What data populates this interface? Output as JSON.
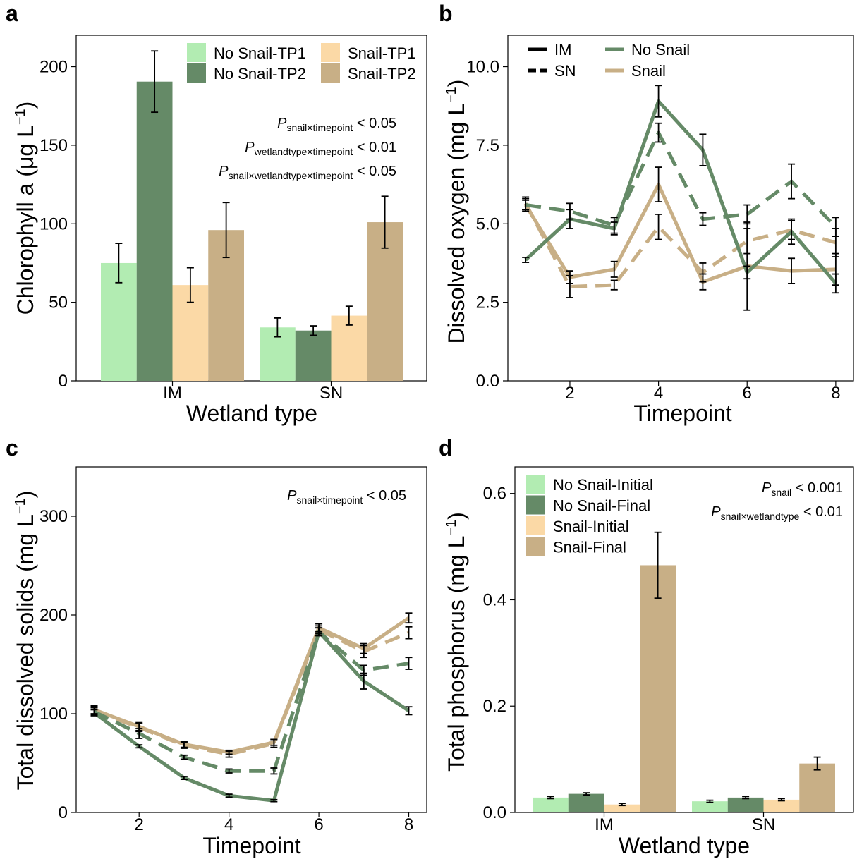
{
  "panel_labels": [
    "a",
    "b",
    "c",
    "d"
  ],
  "colors": {
    "no_snail_tp1": "#b2ecb2",
    "no_snail_tp2": "#658a67",
    "snail_tp1": "#fbd9a6",
    "snail_tp2": "#c8af86",
    "no_snail_line": "#658a67",
    "snail_line": "#c8af86",
    "axis": "#000000"
  },
  "stats": {
    "a": [
      {
        "sym": "P",
        "sub": "snail×timepoint",
        "rest": " < 0.05"
      },
      {
        "sym": "P",
        "sub": "wetlandtype×timepoint",
        "rest": " < 0.01"
      },
      {
        "sym": "P",
        "sub": "snail×wetlandtype×timepoint",
        "rest": " < 0.05"
      }
    ],
    "c": [
      {
        "sym": "P",
        "sub": "snail×timepoint",
        "rest": " < 0.05"
      }
    ],
    "d": [
      {
        "sym": "P",
        "sub": "snail",
        "rest": " < 0.001"
      },
      {
        "sym": "P",
        "sub": "snail×wetlandtype",
        "rest": " < 0.01"
      }
    ]
  },
  "chart_data": [
    {
      "panel": "a",
      "type": "bar",
      "categories": [
        "IM",
        "SN"
      ],
      "xlabel": "Wetland type",
      "ylabel": "Chlorophyll a (μg L−1)",
      "ylim": [
        0,
        220
      ],
      "yticks": [
        0,
        50,
        100,
        150,
        200
      ],
      "legend": "top-right",
      "series": [
        {
          "name": "No Snail-TP1",
          "values": [
            75,
            34
          ],
          "err": [
            12.5,
            6
          ]
        },
        {
          "name": "No Snail-TP2",
          "values": [
            190.5,
            32
          ],
          "err": [
            19.5,
            3
          ]
        },
        {
          "name": "Snail-TP1",
          "values": [
            61,
            41.5
          ],
          "err": [
            11,
            6
          ]
        },
        {
          "name": "Snail-TP2",
          "values": [
            96,
            101
          ],
          "err": [
            17.5,
            16.5
          ]
        }
      ]
    },
    {
      "panel": "b",
      "type": "line",
      "x": [
        1,
        2,
        3,
        4,
        5,
        6,
        7,
        8
      ],
      "xlabel": "Timepoint",
      "ylabel": "Dissolved oxygen (mg L−1)",
      "xlim": [
        0.6,
        8.4
      ],
      "ylim": [
        0,
        11
      ],
      "xticks": [
        2,
        4,
        6,
        8
      ],
      "yticks": [
        0.0,
        2.5,
        5.0,
        7.5,
        10.0
      ],
      "ytick_labels": [
        "0.0",
        "2.5",
        "5.0",
        "7.5",
        "10.0"
      ],
      "legend": "top-left",
      "legend_linetype": [
        "IM",
        "SN"
      ],
      "legend_treatment": [
        "No Snail",
        "Snail"
      ],
      "series": [
        {
          "snail": "No Snail",
          "wetland": "IM",
          "values": [
            3.85,
            5.15,
            4.85,
            8.9,
            7.35,
            3.45,
            4.75,
            3.1
          ],
          "err": [
            0.08,
            0.3,
            0.2,
            0.5,
            0.5,
            0.2,
            0.4,
            0.3
          ]
        },
        {
          "snail": "No Snail",
          "wetland": "SN",
          "values": [
            5.6,
            5.4,
            4.95,
            7.9,
            5.15,
            5.3,
            6.35,
            4.9
          ],
          "err": [
            0.15,
            0.25,
            0.25,
            0.3,
            0.2,
            0.3,
            0.55,
            0.3
          ]
        },
        {
          "snail": "Snail",
          "wetland": "IM",
          "values": [
            5.6,
            3.3,
            3.55,
            6.25,
            3.15,
            3.65,
            3.5,
            3.55
          ],
          "err": [
            0.2,
            0.2,
            0.25,
            0.55,
            0.25,
            1.4,
            0.4,
            0.5
          ]
        },
        {
          "snail": "Snail",
          "wetland": "SN",
          "values": [
            5.65,
            3.0,
            3.05,
            4.9,
            3.45,
            4.45,
            4.8,
            4.4
          ],
          "err": [
            0.2,
            0.35,
            0.15,
            0.4,
            0.3,
            0.4,
            0.3,
            0.45
          ]
        }
      ]
    },
    {
      "panel": "c",
      "type": "line",
      "x": [
        1,
        2,
        3,
        4,
        5,
        6,
        7,
        8
      ],
      "xlabel": "Timepoint",
      "ylabel": "Total dissolved solids (mg L−1)",
      "xlim": [
        0.6,
        8.4
      ],
      "ylim": [
        0,
        350
      ],
      "xticks": [
        2,
        4,
        6,
        8
      ],
      "yticks": [
        0,
        100,
        200,
        300
      ],
      "series": [
        {
          "snail": "No Snail",
          "wetland": "IM",
          "values": [
            101,
            67,
            35,
            17,
            12,
            183,
            133,
            103
          ],
          "err": [
            3,
            1.5,
            1.5,
            1.5,
            1,
            4,
            8,
            4
          ]
        },
        {
          "snail": "No Snail",
          "wetland": "SN",
          "values": [
            102,
            80,
            56,
            42,
            42,
            183,
            144,
            151
          ],
          "err": [
            4,
            5,
            2,
            2,
            3,
            4,
            5,
            6
          ]
        },
        {
          "snail": "Snail",
          "wetland": "IM",
          "values": [
            104,
            87,
            69,
            61,
            71,
            187,
            166,
            197
          ],
          "err": [
            4,
            4,
            3,
            2,
            3,
            4,
            5,
            5
          ]
        },
        {
          "snail": "Snail",
          "wetland": "SN",
          "values": [
            103,
            86,
            68,
            59,
            70,
            185,
            163,
            182
          ],
          "err": [
            4,
            4,
            3,
            3,
            4,
            4,
            6,
            6
          ]
        }
      ]
    },
    {
      "panel": "d",
      "type": "bar",
      "categories": [
        "IM",
        "SN"
      ],
      "xlabel": "Wetland type",
      "ylabel": "Total phosphorus (mg L−1)",
      "ylim": [
        0,
        0.65
      ],
      "yticks": [
        0.0,
        0.2,
        0.4,
        0.6
      ],
      "ytick_labels": [
        "0.0",
        "0.2",
        "0.4",
        "0.6"
      ],
      "legend": "top-left",
      "series": [
        {
          "name": "No Snail-Initial",
          "values": [
            0.028,
            0.021
          ],
          "err": [
            0.002,
            0.002
          ]
        },
        {
          "name": "No Snail-Final",
          "values": [
            0.035,
            0.028
          ],
          "err": [
            0.002,
            0.002
          ]
        },
        {
          "name": "Snail-Initial",
          "values": [
            0.015,
            0.024
          ],
          "err": [
            0.002,
            0.002
          ]
        },
        {
          "name": "Snail-Final",
          "values": [
            0.465,
            0.092
          ],
          "err": [
            0.062,
            0.012
          ]
        }
      ]
    }
  ]
}
